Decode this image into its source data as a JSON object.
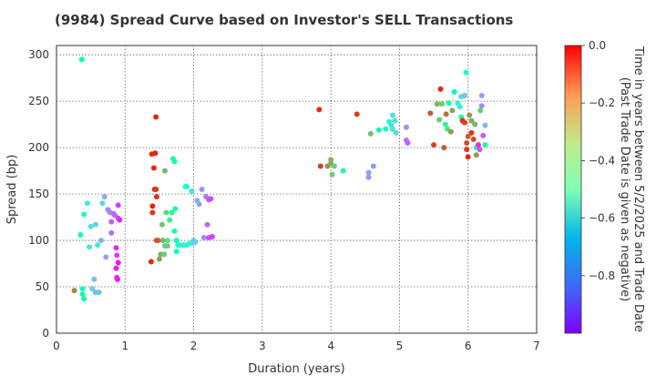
{
  "chart_data": {
    "type": "scatter",
    "title": "(9984)   Spread Curve based on Investor's SELL Transactions",
    "xlabel": "Duration (years)",
    "ylabel": "Spread (bp)",
    "xlim": [
      0,
      7
    ],
    "ylim": [
      0,
      310
    ],
    "xticks": [
      0,
      1,
      2,
      3,
      4,
      5,
      6,
      7
    ],
    "yticks": [
      0,
      50,
      100,
      150,
      200,
      250,
      300
    ],
    "grid": true,
    "colorbar": {
      "label_line1": "Time in years between 5/2/2025 and Trade Date",
      "label_line2": "(Past Trade Date is given as negative)",
      "range": [
        -1.0,
        0.0
      ],
      "ticks": [
        0.0,
        -0.2,
        -0.4,
        -0.6,
        -0.8
      ],
      "tick_labels": [
        "0.0",
        "−0.2",
        "−0.4",
        "−0.6",
        "−0.8"
      ],
      "colormap": "rainbow"
    },
    "points": [
      {
        "x": 0.26,
        "y": 46,
        "c": -0.18
      },
      {
        "x": 0.35,
        "y": 106,
        "c": -0.45
      },
      {
        "x": 0.37,
        "y": 295,
        "c": -0.5
      },
      {
        "x": 0.38,
        "y": 42,
        "c": -0.48
      },
      {
        "x": 0.4,
        "y": 37,
        "c": -0.46
      },
      {
        "x": 0.38,
        "y": 48,
        "c": -0.47
      },
      {
        "x": 0.4,
        "y": 128,
        "c": -0.55
      },
      {
        "x": 0.45,
        "y": 140,
        "c": -0.62
      },
      {
        "x": 0.48,
        "y": 93,
        "c": -0.66
      },
      {
        "x": 0.5,
        "y": 115,
        "c": -0.65
      },
      {
        "x": 0.52,
        "y": 48,
        "c": -0.7
      },
      {
        "x": 0.55,
        "y": 58,
        "c": -0.72
      },
      {
        "x": 0.57,
        "y": 117,
        "c": -0.7
      },
      {
        "x": 0.57,
        "y": 44,
        "c": -0.73
      },
      {
        "x": 0.6,
        "y": 95,
        "c": -0.6
      },
      {
        "x": 0.62,
        "y": 44,
        "c": -0.72
      },
      {
        "x": 0.65,
        "y": 100,
        "c": -0.77
      },
      {
        "x": 0.67,
        "y": 140,
        "c": -0.68
      },
      {
        "x": 0.7,
        "y": 147,
        "c": -0.76
      },
      {
        "x": 0.72,
        "y": 82,
        "c": -0.78
      },
      {
        "x": 0.75,
        "y": 133,
        "c": -0.83
      },
      {
        "x": 0.78,
        "y": 130,
        "c": -0.82
      },
      {
        "x": 0.8,
        "y": 108,
        "c": -0.86
      },
      {
        "x": 0.8,
        "y": 120,
        "c": -0.88
      },
      {
        "x": 0.83,
        "y": 129,
        "c": -0.85
      },
      {
        "x": 0.85,
        "y": 127,
        "c": -0.87
      },
      {
        "x": 0.87,
        "y": 92,
        "c": -0.95
      },
      {
        "x": 0.87,
        "y": 70,
        "c": -0.97
      },
      {
        "x": 0.88,
        "y": 60,
        "c": -0.95
      },
      {
        "x": 0.88,
        "y": 84,
        "c": -0.93
      },
      {
        "x": 0.9,
        "y": 138,
        "c": -0.92
      },
      {
        "x": 0.9,
        "y": 124,
        "c": -0.9
      },
      {
        "x": 0.92,
        "y": 122,
        "c": -0.96
      },
      {
        "x": 0.9,
        "y": 76,
        "c": -0.98
      },
      {
        "x": 0.89,
        "y": 58,
        "c": -0.97
      },
      {
        "x": 1.38,
        "y": 77,
        "c": -0.05
      },
      {
        "x": 1.39,
        "y": 193,
        "c": -0.06
      },
      {
        "x": 1.4,
        "y": 137,
        "c": -0.04
      },
      {
        "x": 1.4,
        "y": 130,
        "c": -0.07
      },
      {
        "x": 1.42,
        "y": 178,
        "c": -0.05
      },
      {
        "x": 1.43,
        "y": 155,
        "c": -0.06
      },
      {
        "x": 1.44,
        "y": 194,
        "c": -0.04
      },
      {
        "x": 1.45,
        "y": 233,
        "c": -0.05
      },
      {
        "x": 1.45,
        "y": 155,
        "c": -0.08
      },
      {
        "x": 1.46,
        "y": 147,
        "c": -0.06
      },
      {
        "x": 1.46,
        "y": 100,
        "c": -0.07
      },
      {
        "x": 1.48,
        "y": 100,
        "c": -0.12
      },
      {
        "x": 1.5,
        "y": 80,
        "c": -0.22
      },
      {
        "x": 1.52,
        "y": 85,
        "c": -0.24
      },
      {
        "x": 1.54,
        "y": 117,
        "c": -0.28
      },
      {
        "x": 1.55,
        "y": 100,
        "c": -0.25
      },
      {
        "x": 1.57,
        "y": 85,
        "c": -0.3
      },
      {
        "x": 1.58,
        "y": 94,
        "c": -0.3
      },
      {
        "x": 1.58,
        "y": 175,
        "c": -0.25
      },
      {
        "x": 1.6,
        "y": 130,
        "c": -0.33
      },
      {
        "x": 1.62,
        "y": 100,
        "c": -0.35
      },
      {
        "x": 1.62,
        "y": 94,
        "c": -0.3
      },
      {
        "x": 1.65,
        "y": 122,
        "c": -0.38
      },
      {
        "x": 1.68,
        "y": 130,
        "c": -0.42
      },
      {
        "x": 1.7,
        "y": 188,
        "c": -0.45
      },
      {
        "x": 1.72,
        "y": 185,
        "c": -0.47
      },
      {
        "x": 1.73,
        "y": 134,
        "c": -0.44
      },
      {
        "x": 1.72,
        "y": 110,
        "c": -0.46
      },
      {
        "x": 1.75,
        "y": 100,
        "c": -0.5
      },
      {
        "x": 1.75,
        "y": 88,
        "c": -0.52
      },
      {
        "x": 1.77,
        "y": 95,
        "c": -0.55
      },
      {
        "x": 1.8,
        "y": 95,
        "c": -0.57
      },
      {
        "x": 1.85,
        "y": 95,
        "c": -0.6
      },
      {
        "x": 1.88,
        "y": 158,
        "c": -0.55
      },
      {
        "x": 1.9,
        "y": 158,
        "c": -0.57
      },
      {
        "x": 1.9,
        "y": 95,
        "c": -0.58
      },
      {
        "x": 1.95,
        "y": 97,
        "c": -0.6
      },
      {
        "x": 1.98,
        "y": 97,
        "c": -0.62
      },
      {
        "x": 1.97,
        "y": 153,
        "c": -0.62
      },
      {
        "x": 2.0,
        "y": 100,
        "c": -0.68
      },
      {
        "x": 2.02,
        "y": 98,
        "c": -0.7
      },
      {
        "x": 2.05,
        "y": 143,
        "c": -0.76
      },
      {
        "x": 2.08,
        "y": 139,
        "c": -0.77
      },
      {
        "x": 2.12,
        "y": 155,
        "c": -0.8
      },
      {
        "x": 2.15,
        "y": 103,
        "c": -0.82
      },
      {
        "x": 2.18,
        "y": 147,
        "c": -0.85
      },
      {
        "x": 2.2,
        "y": 117,
        "c": -0.87
      },
      {
        "x": 2.22,
        "y": 144,
        "c": -0.88
      },
      {
        "x": 2.22,
        "y": 103,
        "c": -0.9
      },
      {
        "x": 2.25,
        "y": 145,
        "c": -0.9
      },
      {
        "x": 2.27,
        "y": 104,
        "c": -0.92
      },
      {
        "x": 3.83,
        "y": 241,
        "c": -0.05
      },
      {
        "x": 3.85,
        "y": 180,
        "c": -0.08
      },
      {
        "x": 3.95,
        "y": 180,
        "c": -0.2
      },
      {
        "x": 4.0,
        "y": 183,
        "c": -0.22
      },
      {
        "x": 4.0,
        "y": 187,
        "c": -0.25
      },
      {
        "x": 4.02,
        "y": 171,
        "c": -0.3
      },
      {
        "x": 4.05,
        "y": 180,
        "c": -0.3
      },
      {
        "x": 4.18,
        "y": 175,
        "c": -0.42
      },
      {
        "x": 4.38,
        "y": 236,
        "c": -0.08
      },
      {
        "x": 4.55,
        "y": 168,
        "c": -0.8
      },
      {
        "x": 4.55,
        "y": 173,
        "c": -0.78
      },
      {
        "x": 4.58,
        "y": 215,
        "c": -0.28
      },
      {
        "x": 4.62,
        "y": 180,
        "c": -0.8
      },
      {
        "x": 4.7,
        "y": 219,
        "c": -0.5
      },
      {
        "x": 4.8,
        "y": 220,
        "c": -0.55
      },
      {
        "x": 4.85,
        "y": 228,
        "c": -0.6
      },
      {
        "x": 4.88,
        "y": 224,
        "c": -0.62
      },
      {
        "x": 4.9,
        "y": 235,
        "c": -0.65
      },
      {
        "x": 4.9,
        "y": 220,
        "c": -0.63
      },
      {
        "x": 4.93,
        "y": 229,
        "c": -0.66
      },
      {
        "x": 4.95,
        "y": 216,
        "c": -0.67
      },
      {
        "x": 5.1,
        "y": 222,
        "c": -0.8
      },
      {
        "x": 5.1,
        "y": 208,
        "c": -0.85
      },
      {
        "x": 5.12,
        "y": 205,
        "c": -0.88
      },
      {
        "x": 5.45,
        "y": 237,
        "c": -0.12
      },
      {
        "x": 5.5,
        "y": 203,
        "c": -0.08
      },
      {
        "x": 5.55,
        "y": 247,
        "c": -0.25
      },
      {
        "x": 5.58,
        "y": 230,
        "c": -0.3
      },
      {
        "x": 5.6,
        "y": 263,
        "c": -0.05
      },
      {
        "x": 5.62,
        "y": 247,
        "c": -0.3
      },
      {
        "x": 5.65,
        "y": 200,
        "c": -0.12
      },
      {
        "x": 5.67,
        "y": 225,
        "c": -0.4
      },
      {
        "x": 5.68,
        "y": 236,
        "c": -0.15
      },
      {
        "x": 5.7,
        "y": 220,
        "c": -0.35
      },
      {
        "x": 5.72,
        "y": 248,
        "c": -0.45
      },
      {
        "x": 5.75,
        "y": 217,
        "c": -0.2
      },
      {
        "x": 5.77,
        "y": 240,
        "c": -0.22
      },
      {
        "x": 5.8,
        "y": 260,
        "c": -0.5
      },
      {
        "x": 5.85,
        "y": 248,
        "c": -0.6
      },
      {
        "x": 5.88,
        "y": 244,
        "c": -0.62
      },
      {
        "x": 5.9,
        "y": 255,
        "c": -0.68
      },
      {
        "x": 5.9,
        "y": 233,
        "c": -0.45
      },
      {
        "x": 5.92,
        "y": 229,
        "c": -0.05
      },
      {
        "x": 5.95,
        "y": 227,
        "c": -0.08
      },
      {
        "x": 5.95,
        "y": 256,
        "c": -0.72
      },
      {
        "x": 5.97,
        "y": 281,
        "c": -0.55
      },
      {
        "x": 5.98,
        "y": 205,
        "c": -0.1
      },
      {
        "x": 5.98,
        "y": 198,
        "c": -0.07
      },
      {
        "x": 6.0,
        "y": 190,
        "c": -0.05
      },
      {
        "x": 6.0,
        "y": 212,
        "c": -0.12
      },
      {
        "x": 6.02,
        "y": 235,
        "c": -0.2
      },
      {
        "x": 6.05,
        "y": 229,
        "c": -0.22
      },
      {
        "x": 6.05,
        "y": 216,
        "c": -0.06
      },
      {
        "x": 6.08,
        "y": 209,
        "c": -0.1
      },
      {
        "x": 6.1,
        "y": 225,
        "c": -0.25
      },
      {
        "x": 6.12,
        "y": 200,
        "c": -0.4
      },
      {
        "x": 6.12,
        "y": 192,
        "c": -0.2
      },
      {
        "x": 6.15,
        "y": 203,
        "c": -0.95
      },
      {
        "x": 6.17,
        "y": 198,
        "c": -0.9
      },
      {
        "x": 6.18,
        "y": 240,
        "c": -0.3
      },
      {
        "x": 6.2,
        "y": 256,
        "c": -0.78
      },
      {
        "x": 6.2,
        "y": 245,
        "c": -0.82
      },
      {
        "x": 6.22,
        "y": 213,
        "c": -0.88
      },
      {
        "x": 6.25,
        "y": 203,
        "c": -0.45
      },
      {
        "x": 6.25,
        "y": 224,
        "c": -0.75
      }
    ]
  }
}
